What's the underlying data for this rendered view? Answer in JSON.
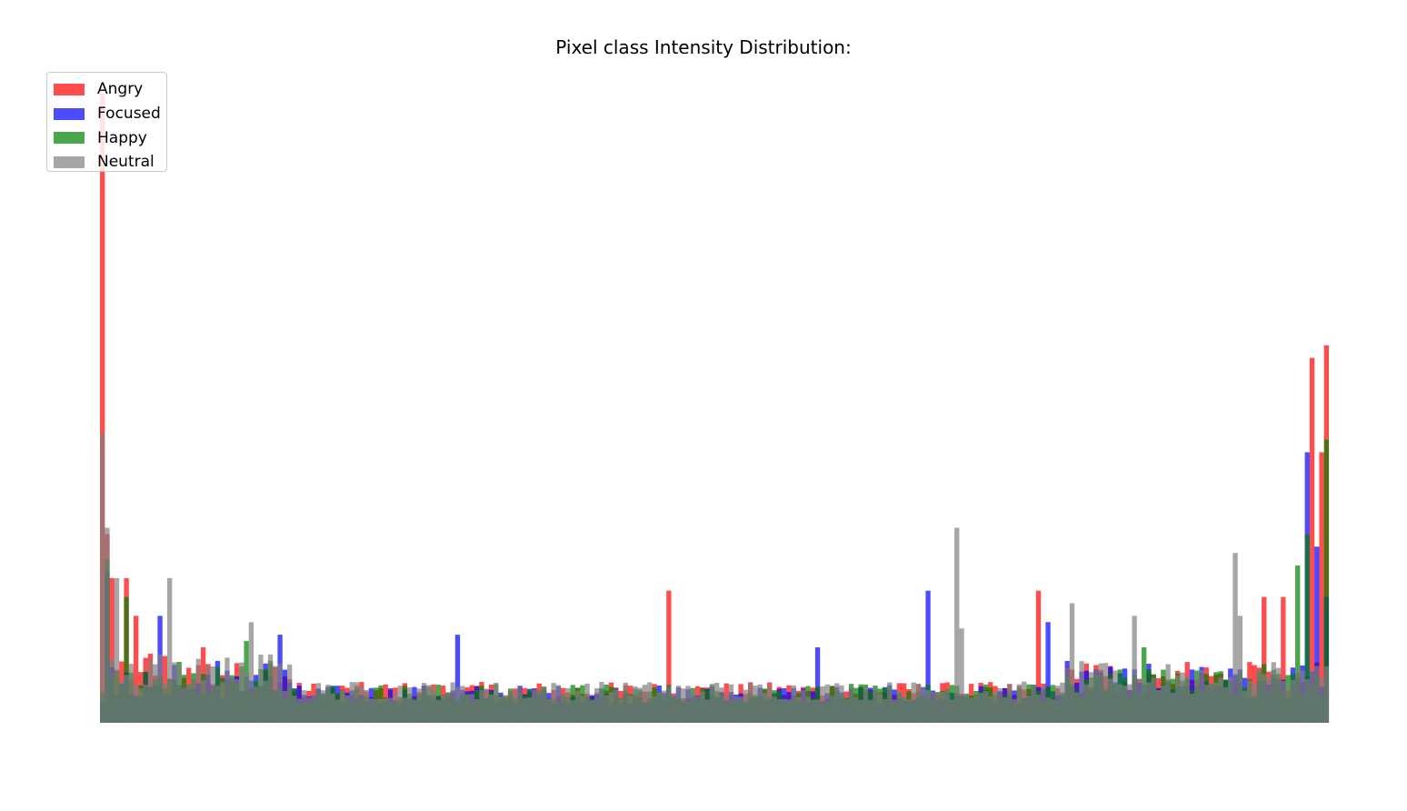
{
  "chart_data": {
    "type": "bar",
    "title": "Pixel class Intensity Distribution:",
    "xlabel": "",
    "ylabel": "",
    "axes_visible": false,
    "grid": false,
    "legend_position": "top-left",
    "x_bins": 256,
    "ylim": [
      0,
      1
    ],
    "series": [
      {
        "name": "Angry",
        "color": "#ff0000",
        "alpha": 0.7,
        "peaks": [
          {
            "x": 0,
            "value": 1.0
          },
          {
            "x": 1,
            "value": 0.3
          },
          {
            "x": 2,
            "value": 0.23
          },
          {
            "x": 5,
            "value": 0.23
          },
          {
            "x": 7,
            "value": 0.17
          },
          {
            "x": 10,
            "value": 0.11
          },
          {
            "x": 21,
            "value": 0.12
          },
          {
            "x": 118,
            "value": 0.21
          },
          {
            "x": 195,
            "value": 0.21
          },
          {
            "x": 242,
            "value": 0.2
          },
          {
            "x": 246,
            "value": 0.2
          },
          {
            "x": 252,
            "value": 0.58
          },
          {
            "x": 254,
            "value": 0.43
          },
          {
            "x": 255,
            "value": 0.6
          }
        ]
      },
      {
        "name": "Focused",
        "color": "#0000ff",
        "alpha": 0.7,
        "peaks": [
          {
            "x": 1,
            "value": 0.24
          },
          {
            "x": 12,
            "value": 0.17
          },
          {
            "x": 37,
            "value": 0.14
          },
          {
            "x": 74,
            "value": 0.14
          },
          {
            "x": 149,
            "value": 0.12
          },
          {
            "x": 172,
            "value": 0.21
          },
          {
            "x": 197,
            "value": 0.16
          },
          {
            "x": 251,
            "value": 0.43
          },
          {
            "x": 253,
            "value": 0.28
          },
          {
            "x": 255,
            "value": 0.2
          }
        ]
      },
      {
        "name": "Happy",
        "color": "#008000",
        "alpha": 0.7,
        "peaks": [
          {
            "x": 1,
            "value": 0.26
          },
          {
            "x": 5,
            "value": 0.2
          },
          {
            "x": 30,
            "value": 0.13
          },
          {
            "x": 217,
            "value": 0.12
          },
          {
            "x": 249,
            "value": 0.25
          },
          {
            "x": 251,
            "value": 0.3
          },
          {
            "x": 255,
            "value": 0.45
          }
        ]
      },
      {
        "name": "Neutral",
        "color": "#808080",
        "alpha": 0.7,
        "peaks": [
          {
            "x": 0,
            "value": 0.46
          },
          {
            "x": 1,
            "value": 0.31
          },
          {
            "x": 3,
            "value": 0.23
          },
          {
            "x": 14,
            "value": 0.23
          },
          {
            "x": 31,
            "value": 0.16
          },
          {
            "x": 178,
            "value": 0.31
          },
          {
            "x": 179,
            "value": 0.15
          },
          {
            "x": 202,
            "value": 0.19
          },
          {
            "x": 215,
            "value": 0.17
          },
          {
            "x": 236,
            "value": 0.27
          },
          {
            "x": 237,
            "value": 0.17
          }
        ]
      }
    ]
  },
  "legend": {
    "items": [
      {
        "label": "Angry",
        "color": "#ff0000"
      },
      {
        "label": "Focused",
        "color": "#0000ff"
      },
      {
        "label": "Happy",
        "color": "#008000"
      },
      {
        "label": "Neutral",
        "color": "#808080"
      }
    ]
  }
}
